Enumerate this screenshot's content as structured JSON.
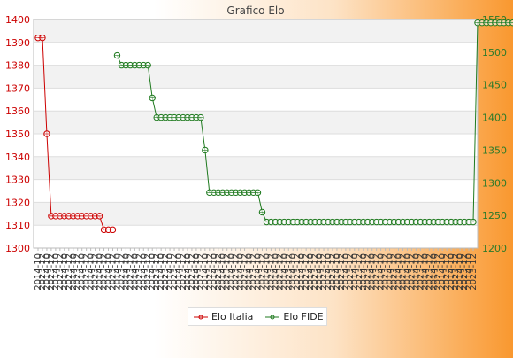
{
  "chart_data": {
    "type": "line",
    "title": "Grafico Elo",
    "x_tick_label_count": 100,
    "x_tick_labels_first": "2014-10",
    "x_tick_labels_last": "2023-12",
    "y_left": {
      "min": 1300,
      "max": 1400,
      "step": 10,
      "color": "#cc0000",
      "ticks": [
        "1300",
        "1310",
        "1320",
        "1330",
        "1340",
        "1350",
        "1360",
        "1370",
        "1380",
        "1390",
        "1400"
      ]
    },
    "y_right": {
      "min": 1200,
      "max": 1550,
      "step": 50,
      "color": "#2a7a2a",
      "ticks": [
        "1200",
        "1250",
        "1300",
        "1350",
        "1400",
        "1450",
        "1500",
        "1550"
      ]
    },
    "grid": true,
    "legend_position": "bottom",
    "series": [
      {
        "name": "Elo Italia",
        "axis": "left",
        "color": "#cc0000",
        "values": [
          1392,
          1392,
          1350,
          1314,
          1314,
          1314,
          1314,
          1314,
          1314,
          1314,
          1314,
          1314,
          1314,
          1314,
          1314,
          1308,
          1308,
          1308
        ]
      },
      {
        "name": "Elo FIDE",
        "axis": "right",
        "color": "#1f7a1f",
        "start_index": 18,
        "values": [
          1495,
          1480,
          1480,
          1480,
          1480,
          1480,
          1480,
          1480,
          1430,
          1400,
          1400,
          1400,
          1400,
          1400,
          1400,
          1400,
          1400,
          1400,
          1400,
          1400,
          1350,
          1285,
          1285,
          1285,
          1285,
          1285,
          1285,
          1285,
          1285,
          1285,
          1285,
          1285,
          1285,
          1255,
          1240,
          1240,
          1240,
          1240,
          1240,
          1240,
          1240,
          1240,
          1240,
          1240,
          1240,
          1240,
          1240,
          1240,
          1240,
          1240,
          1240,
          1240,
          1240,
          1240,
          1240,
          1240,
          1240,
          1240,
          1240,
          1240,
          1240,
          1240,
          1240,
          1240,
          1240,
          1240,
          1240,
          1240,
          1240,
          1240,
          1240,
          1240,
          1240,
          1240,
          1240,
          1240,
          1240,
          1240,
          1240,
          1240,
          1240,
          1240,
          1545,
          1545,
          1545,
          1545,
          1545,
          1545,
          1545,
          1545,
          1545,
          1545,
          1545,
          1545,
          1545,
          1545,
          1545,
          1545,
          1545,
          1545,
          1545,
          1545,
          1545,
          1545
        ]
      }
    ]
  }
}
